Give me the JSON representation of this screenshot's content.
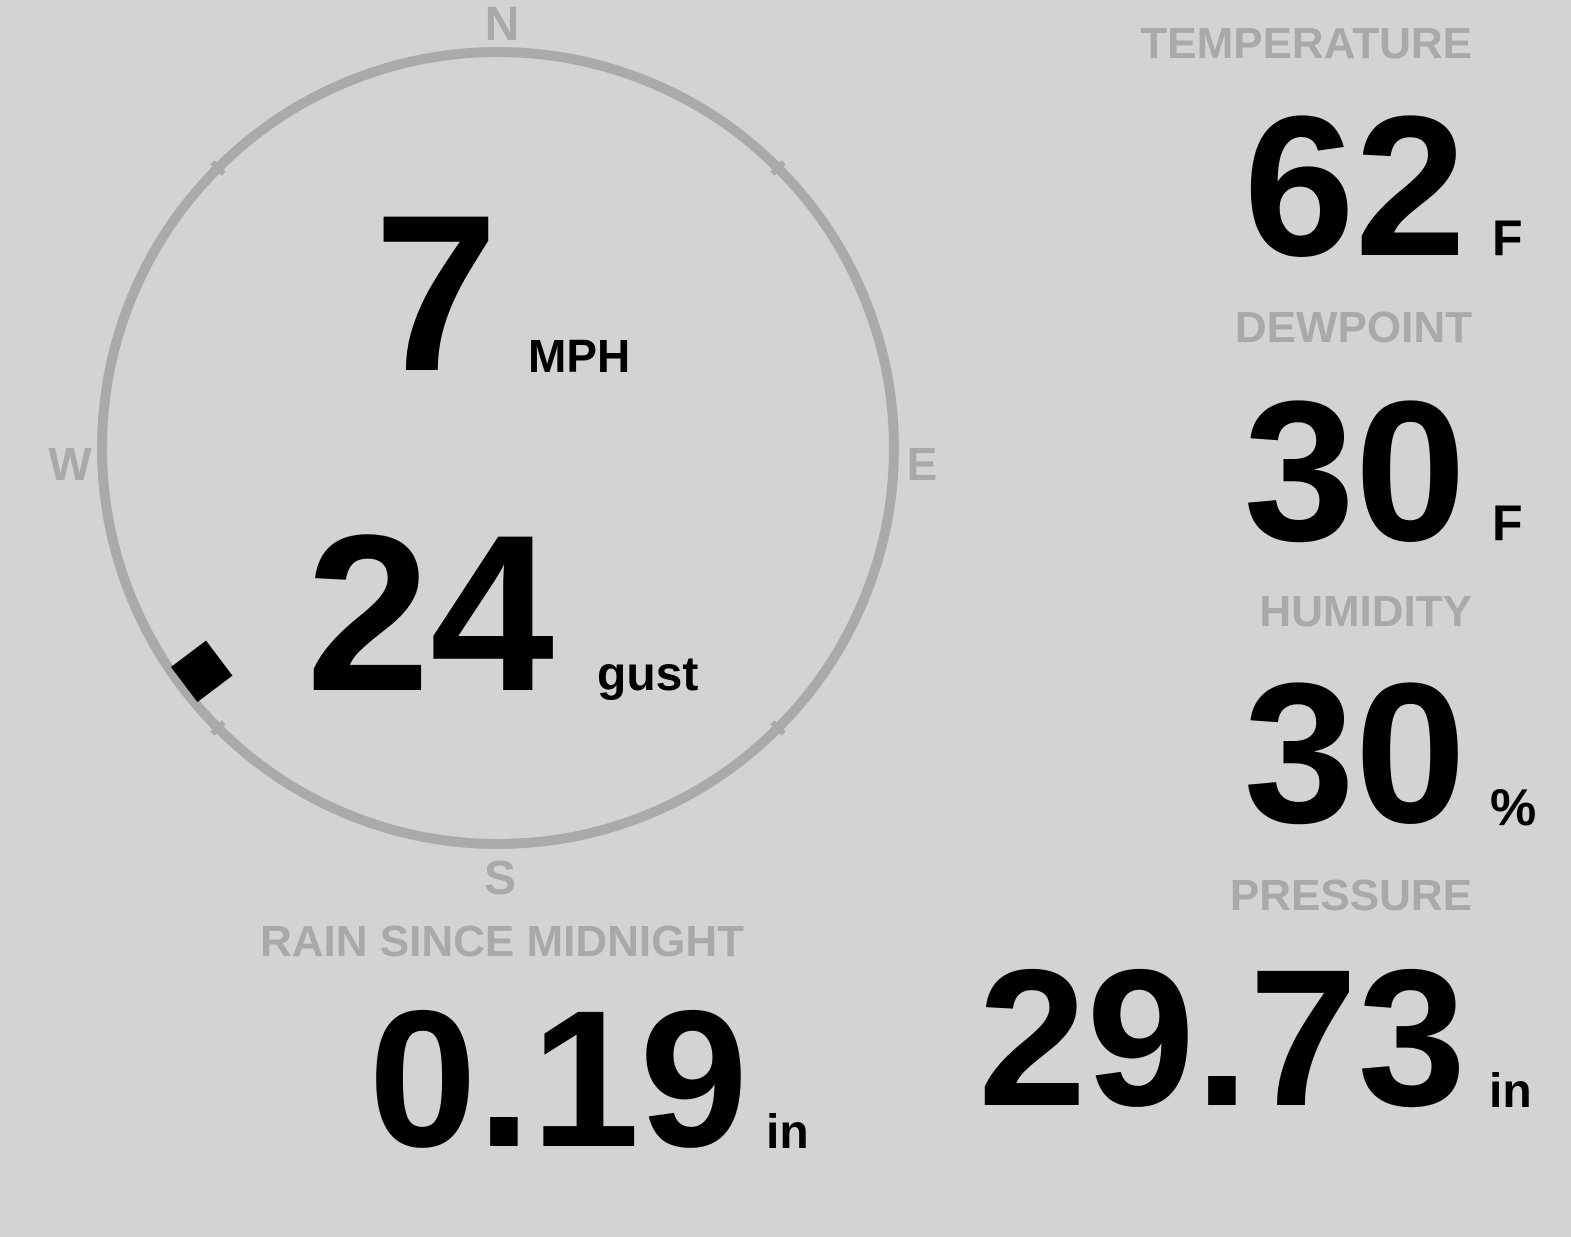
{
  "colors": {
    "background": "#d3d3d3",
    "label": "#a9a9a9",
    "value": "#000000",
    "compass_ring": "#aaaaaa"
  },
  "compass": {
    "north": "N",
    "south": "S",
    "east": "E",
    "west": "W",
    "wind_direction_deg": 233,
    "pointer_icon": "diamond-pointer"
  },
  "wind": {
    "speed": "7",
    "speed_unit": "MPH",
    "gust": "24",
    "gust_label": "gust"
  },
  "temperature": {
    "label": "TEMPERATURE",
    "value": "62",
    "unit": "F"
  },
  "dewpoint": {
    "label": "DEWPOINT",
    "value": "30",
    "unit": "F"
  },
  "humidity": {
    "label": "HUMIDITY",
    "value": "30",
    "unit": "%"
  },
  "rain": {
    "label": "RAIN SINCE MIDNIGHT",
    "value": "0.19",
    "unit": "in"
  },
  "pressure": {
    "label": "PRESSURE",
    "value": "29.73",
    "unit": "in"
  }
}
